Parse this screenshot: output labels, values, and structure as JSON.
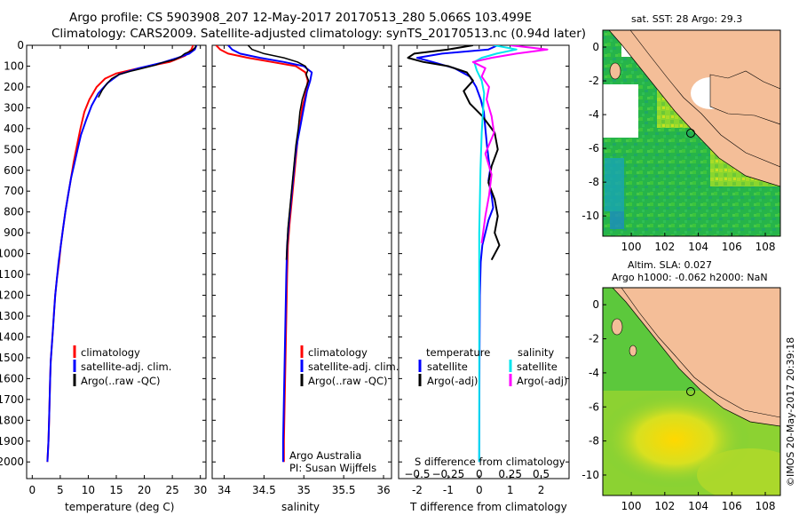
{
  "header": {
    "line1": "Argo profile: CS 5903908_207 12-May-2017 20170513_280 5.066S 103.499E",
    "line2": "Climatology: CARS2009. Satellite-adjusted climatology: synTS_20170513.nc (0.94d later)"
  },
  "colors": {
    "climatology": "#ff0000",
    "satellite": "#0000ff",
    "argo": "#000000",
    "satellite_s": "#00e5ee",
    "argo_s": "#ff00ff",
    "land": "#f4be98",
    "sea_green": "#3cc43c"
  },
  "chart_data": [
    {
      "type": "line",
      "name": "temperature-profile",
      "xlabel": "temperature (deg C)",
      "ylabel": "",
      "xlim": [
        -1,
        31
      ],
      "ylim": [
        2080,
        0
      ],
      "xticks": [
        0,
        5,
        10,
        15,
        20,
        25,
        30
      ],
      "yticks": [
        0,
        100,
        200,
        300,
        400,
        500,
        600,
        700,
        800,
        900,
        1000,
        1100,
        1200,
        1300,
        1400,
        1500,
        1600,
        1700,
        1800,
        1900,
        2000
      ],
      "legend": [
        "climatology",
        "satellite-adj. clim.",
        "Argo(..raw -QC)"
      ],
      "series": [
        {
          "name": "climatology",
          "color": "#ff0000",
          "width": 2,
          "x": [
            28.7,
            28.4,
            27.3,
            24.5,
            19,
            15,
            13,
            11.5,
            10.2,
            9.3,
            8.6,
            8,
            7.4,
            6.9,
            6.4,
            5.9,
            5.5,
            5.1,
            4.8,
            4.4,
            4.1,
            3.9,
            3.7,
            3.5,
            3.3,
            3.2,
            3.1,
            3,
            2.9,
            2.7
          ],
          "y": [
            0,
            20,
            50,
            80,
            110,
            135,
            160,
            200,
            260,
            320,
            400,
            480,
            560,
            640,
            720,
            800,
            880,
            960,
            1040,
            1120,
            1200,
            1280,
            1360,
            1440,
            1520,
            1600,
            1700,
            1800,
            1900,
            2000
          ]
        },
        {
          "name": "satellite-adj. clim.",
          "color": "#0000ff",
          "width": 2,
          "x": [
            29.3,
            29,
            28,
            26,
            23,
            19,
            15.5,
            13.5,
            11.8,
            10.6,
            9.6,
            8.7,
            8.1,
            7.5,
            6.9,
            6.4,
            5.9,
            5.5,
            5.1,
            4.7,
            4.4,
            4.1,
            3.9,
            3.7,
            3.5,
            3.3,
            3.2,
            3.1,
            3,
            2.9,
            2.7
          ],
          "y": [
            0,
            20,
            40,
            60,
            85,
            110,
            140,
            180,
            230,
            290,
            360,
            430,
            500,
            570,
            640,
            720,
            800,
            880,
            960,
            1040,
            1120,
            1200,
            1280,
            1360,
            1440,
            1520,
            1600,
            1700,
            1800,
            1900,
            2000
          ]
        },
        {
          "name": "Argo(..raw -QC)",
          "color": "#000000",
          "width": 1.5,
          "x": [
            29.2,
            29.1,
            28.5,
            27.2,
            26.5,
            25.3,
            23,
            22,
            20.5,
            19,
            17.5,
            15.5,
            14.2,
            13.3,
            12.5,
            11.8
          ],
          "y": [
            0,
            10,
            25,
            40,
            55,
            70,
            85,
            95,
            105,
            115,
            125,
            140,
            160,
            185,
            215,
            250
          ]
        }
      ]
    },
    {
      "type": "line",
      "name": "salinity-profile",
      "xlabel": "salinity",
      "xlim": [
        33.85,
        36.1
      ],
      "ylim": [
        2080,
        0
      ],
      "xticks": [
        34,
        34.5,
        35,
        35.5,
        36
      ],
      "xticklabels": [
        "34",
        "34.5",
        "35",
        "35.5",
        "36"
      ],
      "legend": [
        "climatology",
        "satellite-adj. clim.",
        "Argo(..raw -QC)"
      ],
      "annotation": [
        "Argo Australia",
        "PI: Susan Wijffels"
      ],
      "series": [
        {
          "name": "climatology",
          "color": "#ff0000",
          "width": 2,
          "x": [
            33.9,
            33.95,
            34.05,
            34.3,
            34.6,
            34.9,
            35.02,
            35.05,
            35.03,
            34.98,
            34.95,
            34.92,
            34.9,
            34.88,
            34.86,
            34.84,
            34.82,
            34.8,
            34.79,
            34.78,
            34.77,
            34.76,
            34.75,
            34.75
          ],
          "y": [
            0,
            20,
            40,
            60,
            80,
            100,
            130,
            170,
            220,
            300,
            380,
            460,
            540,
            620,
            700,
            780,
            860,
            960,
            1100,
            1300,
            1500,
            1700,
            1900,
            2000
          ]
        },
        {
          "name": "satellite-adj. clim.",
          "color": "#0000ff",
          "width": 2,
          "x": [
            34.05,
            34.1,
            34.2,
            34.45,
            34.75,
            35.0,
            35.1,
            35.08,
            35.04,
            35.0,
            34.96,
            34.92,
            34.89,
            34.87,
            34.85,
            34.83,
            34.81,
            34.79,
            34.78,
            34.77,
            34.76,
            34.75,
            34.74,
            34.74
          ],
          "y": [
            0,
            20,
            40,
            60,
            80,
            100,
            130,
            170,
            220,
            300,
            380,
            460,
            540,
            620,
            700,
            780,
            860,
            960,
            1100,
            1300,
            1500,
            1700,
            1900,
            2000
          ]
        },
        {
          "name": "Argo(..raw -QC)",
          "color": "#000000",
          "width": 1.5,
          "x": [
            34.3,
            34.35,
            34.5,
            34.75,
            34.92,
            35.02,
            35.05,
            35.03,
            35.06,
            35.02,
            34.98,
            34.95,
            34.93,
            34.9,
            34.88,
            34.86,
            34.84,
            34.82,
            34.8,
            34.79,
            34.78
          ],
          "y": [
            0,
            20,
            40,
            60,
            80,
            100,
            120,
            140,
            170,
            210,
            260,
            320,
            400,
            480,
            560,
            640,
            720,
            800,
            880,
            960,
            1030
          ]
        }
      ]
    },
    {
      "type": "line",
      "name": "difference-profile",
      "xlabel": "T difference from climatology",
      "x2label": "S difference from climatology",
      "xlim": [
        -2.6,
        2.9
      ],
      "ylim": [
        2080,
        0
      ],
      "xticks": [
        -2,
        -1,
        0,
        1,
        2
      ],
      "x2ticks": [
        -0.5,
        -0.25,
        0,
        0.25,
        0.5
      ],
      "x2ticklabels": [
        "−0.5",
        "−0.25",
        "0",
        "0.25",
        "0.5"
      ],
      "legend_temperature_title": "temperature",
      "legend_salinity_title": "salinity",
      "legend": [
        "satellite",
        "Argo(-adj)",
        "satellite",
        "Argo(-adj)"
      ],
      "series": [
        {
          "name": "T satellite",
          "color": "#0000ff",
          "width": 2,
          "x": [
            0.6,
            0.3,
            -1.2,
            -2.0,
            -1.5,
            -0.8,
            -0.3,
            -0.1,
            0.05,
            0.15,
            0.2,
            0.25,
            0.3,
            0.35,
            0.3,
            0.4,
            0.45,
            0.3,
            0.2,
            0.1,
            0.05,
            0.02,
            0.01,
            0
          ],
          "y": [
            0,
            20,
            40,
            60,
            80,
            110,
            150,
            200,
            260,
            320,
            400,
            480,
            540,
            600,
            650,
            720,
            780,
            840,
            900,
            960,
            1040,
            1200,
            1500,
            2000
          ]
        },
        {
          "name": "T Argo(-adj)",
          "color": "#000000",
          "width": 2,
          "x": [
            -0.2,
            -1,
            -2.1,
            -2.3,
            -1.8,
            -1,
            -0.4,
            -0.2,
            -0.5,
            -0.3,
            0.1,
            0.5,
            0.6,
            0.4,
            0.3,
            0.5,
            0.6,
            0.5,
            0.65,
            0.4
          ],
          "y": [
            0,
            20,
            40,
            60,
            80,
            100,
            130,
            170,
            220,
            280,
            340,
            420,
            500,
            580,
            660,
            740,
            820,
            900,
            960,
            1030
          ]
        },
        {
          "name": "S satellite",
          "color": "#00e5ee",
          "width": 2,
          "x": [
            0.12,
            0.3,
            0.14,
            0.02,
            -0.04,
            -0.02,
            0.02,
            0.04,
            0.03,
            0.02,
            0.01,
            0,
            0,
            0
          ],
          "y": [
            0,
            20,
            40,
            60,
            80,
            120,
            170,
            230,
            320,
            420,
            600,
            900,
            1400,
            2000
          ]
        },
        {
          "name": "S Argo(-adj)",
          "color": "#ff00ff",
          "width": 2,
          "x": [
            0.25,
            0.55,
            0.3,
            0.1,
            -0.05,
            0.05,
            0.02,
            0.08,
            0.06,
            0.1,
            0.12,
            0.05,
            0.1,
            0.08,
            0.05,
            0.02
          ],
          "y": [
            0,
            20,
            40,
            60,
            80,
            110,
            150,
            200,
            260,
            340,
            420,
            520,
            620,
            720,
            820,
            950
          ]
        }
      ]
    }
  ],
  "maps": {
    "sst": {
      "title": "sat. SST: 28 Argo: 29.3",
      "xticks": [
        "100",
        "102",
        "104",
        "106",
        "108"
      ],
      "yticks": [
        "0",
        "-2",
        "-4",
        "-6",
        "-8",
        "-10"
      ]
    },
    "sla": {
      "title1": "Altim. SLA: 0.027",
      "title2": "Argo h1000: -0.062 h2000: NaN",
      "xticks": [
        "100",
        "102",
        "104",
        "106",
        "108"
      ],
      "yticks": [
        "0",
        "-2",
        "-4",
        "-6",
        "-8",
        "-10"
      ]
    }
  },
  "watermark": "©IMOS 20-May-2017 20:39:18"
}
